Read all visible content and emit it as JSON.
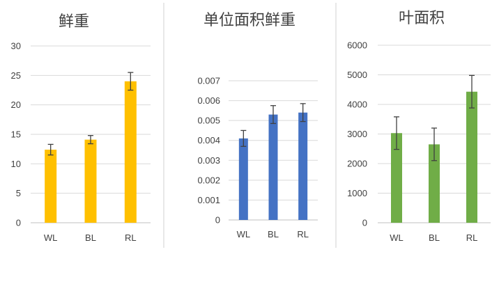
{
  "chart_data": [
    {
      "type": "bar",
      "title": "鲜重",
      "categories": [
        "WL",
        "BL",
        "RL"
      ],
      "values": [
        12.4,
        14.1,
        24.0
      ],
      "errors": [
        0.9,
        0.7,
        1.5
      ],
      "ylim": [
        0,
        30
      ],
      "yticks": [
        0,
        5,
        10,
        15,
        20,
        25,
        30
      ],
      "ytick_labels": [
        "0",
        "5",
        "10",
        "15",
        "20",
        "25",
        "30"
      ],
      "color": "#FFC000",
      "grid": true,
      "xlabel": "",
      "ylabel": ""
    },
    {
      "type": "bar",
      "title": "单位面积鲜重",
      "categories": [
        "WL",
        "BL",
        "RL"
      ],
      "values": [
        0.0041,
        0.0053,
        0.0054
      ],
      "errors": [
        0.0004,
        0.00045,
        0.00045
      ],
      "ylim": [
        0,
        0.007
      ],
      "yticks": [
        0,
        0.001,
        0.002,
        0.003,
        0.004,
        0.005,
        0.006,
        0.007
      ],
      "ytick_labels": [
        "0",
        "0.001",
        "0.002",
        "0.003",
        "0.004",
        "0.005",
        "0.006",
        "0.007"
      ],
      "color": "#4472C4",
      "grid": true,
      "xlabel": "",
      "ylabel": ""
    },
    {
      "type": "bar",
      "title": "叶面积",
      "categories": [
        "WL",
        "BL",
        "RL"
      ],
      "values": [
        3030,
        2650,
        4430
      ],
      "errors": [
        550,
        550,
        550
      ],
      "ylim": [
        0,
        6000
      ],
      "yticks": [
        0,
        1000,
        2000,
        3000,
        4000,
        5000,
        6000
      ],
      "ytick_labels": [
        "0",
        "1000",
        "2000",
        "3000",
        "4000",
        "5000",
        "6000"
      ],
      "color": "#70AD47",
      "grid": true,
      "xlabel": "",
      "ylabel": ""
    }
  ]
}
